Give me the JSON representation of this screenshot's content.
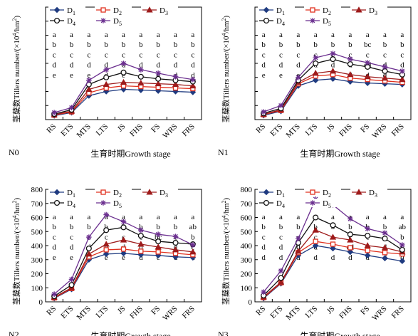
{
  "chart_data": [
    {
      "type": "line",
      "panel_label": "N0",
      "xlabel": "生育时期Growth stage",
      "ylabel_main": "茎蘖数Tillers number/(×",
      "ylabel_unit": "10",
      "ylabel_sup1": "4",
      "ylabel_mid": "/hm",
      "ylabel_sup2": "2",
      "ylabel_end": ")",
      "categories": [
        "RS",
        "ETS",
        "MTS",
        "LTS",
        "JS",
        "FHS",
        "FS",
        "WRS",
        "FRS"
      ],
      "ylim": [
        0,
        800
      ],
      "yticks": [],
      "series": [
        {
          "name": "D1",
          "values": [
            28,
            50,
            170,
            200,
            215,
            210,
            205,
            200,
            195
          ]
        },
        {
          "name": "D2",
          "values": [
            32,
            55,
            190,
            225,
            240,
            235,
            230,
            225,
            220
          ]
        },
        {
          "name": "D3",
          "values": [
            35,
            60,
            215,
            250,
            265,
            260,
            255,
            250,
            240
          ]
        },
        {
          "name": "D4",
          "values": [
            40,
            70,
            250,
            300,
            335,
            305,
            290,
            280,
            270
          ]
        },
        {
          "name": "D5",
          "values": [
            50,
            85,
            280,
            355,
            400,
            355,
            330,
            305,
            285
          ]
        }
      ],
      "letters": [
        [
          "a",
          "b",
          "c",
          "d",
          "e"
        ],
        [
          "a",
          "b",
          "c",
          "d",
          "e"
        ],
        [
          "a",
          "b",
          "c",
          "d",
          "e"
        ],
        [
          "a",
          "b",
          "c",
          "d",
          "d"
        ],
        [
          "a",
          "b",
          "c",
          "d",
          "e"
        ],
        [
          "a",
          "b",
          "c",
          "d",
          "e"
        ],
        [
          "a",
          "b",
          "c",
          "d",
          "e"
        ],
        [
          "a",
          "b",
          "c",
          "d",
          "d"
        ],
        [
          "a",
          "b",
          "c",
          "d",
          "d"
        ]
      ]
    },
    {
      "type": "line",
      "panel_label": "N1",
      "xlabel": "生育时期Growth stage",
      "ylabel_main": "茎蘖数Tillers number/(×",
      "ylabel_unit": "10",
      "ylabel_sup1": "4",
      "ylabel_mid": "/hm",
      "ylabel_sup2": "2",
      "ylabel_end": ")",
      "categories": [
        "RS",
        "ETS",
        "MTS",
        "LTS",
        "JS",
        "FHS",
        "FS",
        "WRS",
        "FRS"
      ],
      "ylim": [
        0,
        800
      ],
      "yticks": [],
      "series": [
        {
          "name": "D1",
          "values": [
            30,
            60,
            240,
            280,
            290,
            270,
            260,
            255,
            250
          ]
        },
        {
          "name": "D2",
          "values": [
            35,
            65,
            255,
            310,
            320,
            295,
            285,
            275,
            265
          ]
        },
        {
          "name": "D3",
          "values": [
            38,
            70,
            265,
            330,
            345,
            320,
            305,
            295,
            285
          ]
        },
        {
          "name": "D4",
          "values": [
            45,
            80,
            280,
            400,
            430,
            395,
            375,
            345,
            320
          ]
        },
        {
          "name": "D5",
          "values": [
            55,
            100,
            300,
            440,
            470,
            430,
            405,
            375,
            345
          ]
        }
      ],
      "letters": [
        [
          "a",
          "b",
          "c",
          "d",
          "e"
        ],
        [
          "a",
          "b",
          "c",
          "d",
          "e"
        ],
        [
          "a",
          "b",
          "c",
          "d",
          "e"
        ],
        [
          "a",
          "b",
          "c",
          "d",
          "e"
        ],
        [
          "a",
          "b",
          "c",
          "d",
          "e"
        ],
        [
          "a",
          "b",
          "c",
          "d",
          "d"
        ],
        [
          "a",
          "bc",
          "c",
          "cd",
          "d"
        ],
        [
          "a",
          "b",
          "c",
          "d",
          "d"
        ],
        [
          "a",
          "b",
          "c",
          "d",
          "d"
        ]
      ]
    },
    {
      "type": "line",
      "panel_label": "N2",
      "xlabel": "生育时期Growth stage",
      "ylabel_main": "茎蘖数Tillers number/(×",
      "ylabel_unit": "10",
      "ylabel_sup1": "4",
      "ylabel_mid": "/hm",
      "ylabel_sup2": "2",
      "ylabel_end": ")",
      "categories": [
        "RS",
        "ETS",
        "MTS",
        "LTS",
        "JS",
        "FHS",
        "FS",
        "WRS",
        "FRS"
      ],
      "ylim": [
        0,
        800
      ],
      "yticks": [
        "0",
        "100",
        "200",
        "300",
        "400",
        "500",
        "600",
        "700",
        "800"
      ],
      "series": [
        {
          "name": "D1",
          "values": [
            25,
            90,
            300,
            340,
            345,
            335,
            330,
            320,
            315
          ]
        },
        {
          "name": "D2",
          "values": [
            28,
            95,
            320,
            370,
            375,
            360,
            355,
            345,
            335
          ]
        },
        {
          "name": "D3",
          "values": [
            32,
            100,
            340,
            410,
            440,
            410,
            390,
            370,
            355
          ]
        },
        {
          "name": "D4",
          "values": [
            40,
            120,
            380,
            510,
            530,
            470,
            430,
            420,
            410
          ]
        },
        {
          "name": "D5",
          "values": [
            55,
            160,
            460,
            620,
            570,
            510,
            480,
            465,
            405
          ]
        }
      ],
      "letters": [
        [
          "a",
          "b",
          "c",
          "d",
          "e"
        ],
        [
          "a",
          "b",
          "c",
          "d",
          "e"
        ],
        [
          "a",
          "b",
          "c",
          "d",
          "e"
        ],
        [
          "a",
          "b",
          "c",
          "d",
          "e"
        ],
        [
          "a",
          "b",
          "c",
          "d",
          "e"
        ],
        [
          "a",
          "b",
          "c",
          "d",
          "d"
        ],
        [
          "a",
          "b",
          "bc",
          "c",
          "c"
        ],
        [
          "a",
          "b",
          "c",
          "d",
          "d"
        ],
        [
          "a",
          "ab",
          "b",
          "c",
          "d"
        ]
      ]
    },
    {
      "type": "line",
      "panel_label": "N3",
      "xlabel": "生育时期Growth stage",
      "ylabel_main": "茎蘖数Tillers number/(×",
      "ylabel_unit": "10",
      "ylabel_sup1": "4",
      "ylabel_mid": "/hm",
      "ylabel_sup2": "2",
      "ylabel_end": ")",
      "categories": [
        "RS",
        "ETS",
        "MTS",
        "LTS",
        "JS",
        "FHS",
        "FS",
        "WRS",
        "FRS"
      ],
      "ylim": [
        0,
        800
      ],
      "yticks": [
        "0",
        "100",
        "200",
        "300",
        "400",
        "500",
        "600",
        "700",
        "800"
      ],
      "series": [
        {
          "name": "D1",
          "values": [
            25,
            130,
            330,
            400,
            380,
            355,
            330,
            310,
            290
          ]
        },
        {
          "name": "D2",
          "values": [
            30,
            135,
            350,
            430,
            410,
            385,
            365,
            350,
            340
          ]
        },
        {
          "name": "D3",
          "values": [
            35,
            140,
            360,
            510,
            460,
            440,
            400,
            385,
            355
          ]
        },
        {
          "name": "D4",
          "values": [
            45,
            170,
            420,
            600,
            545,
            480,
            470,
            450,
            370
          ]
        },
        {
          "name": "D5",
          "values": [
            70,
            220,
            450,
            730,
            690,
            590,
            520,
            490,
            405
          ]
        }
      ],
      "letters": [
        [
          "a",
          "b",
          "c",
          "d",
          "d"
        ],
        [
          "a",
          "b",
          "c",
          "d",
          "d"
        ],
        [
          "a",
          "b",
          "c",
          "d",
          "d"
        ],
        [
          "a",
          "b",
          "c",
          "d",
          "d"
        ],
        [
          "a",
          "b",
          "c",
          "d",
          "d"
        ],
        [
          "a",
          "b",
          "c",
          "cd",
          "d"
        ],
        [
          "a",
          "b",
          "c",
          "d",
          "d"
        ],
        [
          "a",
          "b",
          "c",
          "d",
          "d"
        ],
        [
          "a",
          "ab",
          "b",
          "c",
          "d"
        ]
      ]
    }
  ],
  "legend": {
    "labels": [
      "D",
      "D",
      "D",
      "D",
      "D"
    ],
    "subscripts": [
      "1",
      "2",
      "3",
      "4",
      "5"
    ]
  },
  "colors": {
    "D1": "#1f3b80",
    "D2": "#e0301e",
    "D3": "#9e1b1b",
    "D4": "#111111",
    "D5": "#6b2f8f"
  },
  "markers": {
    "D1": "diamond-filled",
    "D2": "square-open",
    "D3": "triangle-filled",
    "D4": "circle-open",
    "D5": "star-asterisk"
  }
}
